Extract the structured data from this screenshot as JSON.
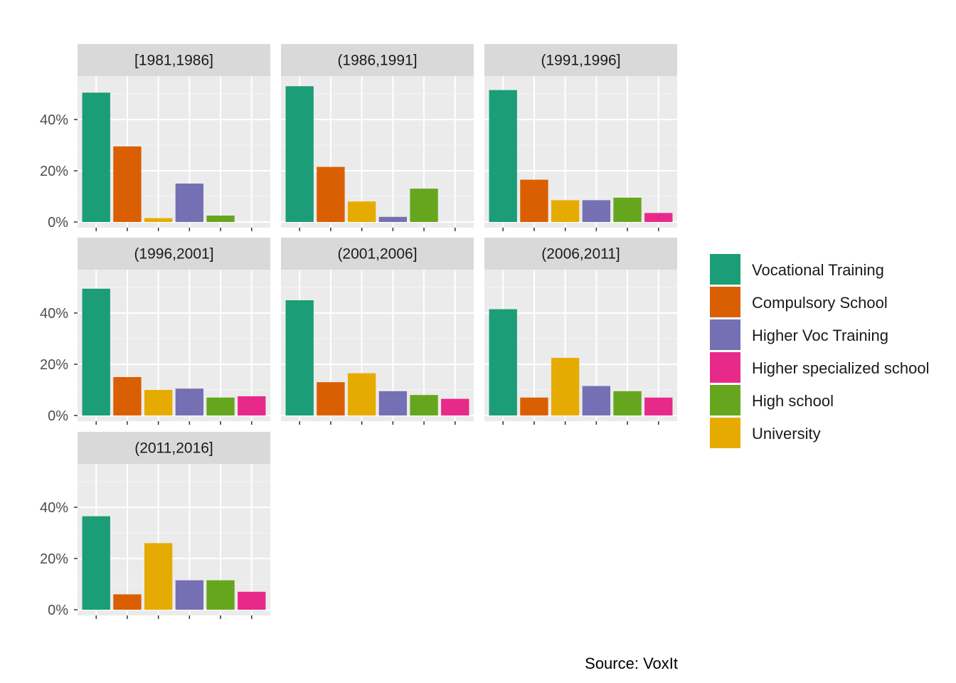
{
  "chart_data": {
    "type": "bar",
    "facet_layout": "wrap-3-columns",
    "categories": [
      "Vocational Training",
      "Compulsory School",
      "University",
      "Higher Voc Training",
      "High school",
      "Higher specialized school"
    ],
    "y_ticks": [
      0,
      20,
      40
    ],
    "y_tick_labels": [
      "0%",
      "20%",
      "40%"
    ],
    "ylim": [
      0,
      55
    ],
    "grid": true,
    "legend_position": "right",
    "colors": {
      "Vocational Training": "#1b9e77",
      "Compulsory School": "#d95f02",
      "University": "#e6ab02",
      "Higher Voc Training": "#7570b3",
      "High school": "#66a61e",
      "Higher specialized school": "#e7298a"
    },
    "facets": [
      {
        "label": "[1981,1986]",
        "values": [
          50.5,
          29.5,
          1.5,
          15,
          2.5,
          0
        ]
      },
      {
        "label": "(1986,1991]",
        "values": [
          53,
          21.5,
          8,
          2,
          13,
          0
        ]
      },
      {
        "label": "(1991,1996]",
        "values": [
          51.5,
          16.5,
          8.5,
          8.5,
          9.5,
          3.5
        ]
      },
      {
        "label": "(1996,2001]",
        "values": [
          49.5,
          15,
          10,
          10.5,
          7,
          7.5
        ]
      },
      {
        "label": "(2001,2006]",
        "values": [
          45,
          13,
          16.5,
          9.5,
          8,
          6.5
        ]
      },
      {
        "label": "(2006,2011]",
        "values": [
          41.5,
          7,
          22.5,
          11.5,
          9.5,
          7
        ]
      },
      {
        "label": "(2011,2016]",
        "values": [
          36.5,
          6,
          26,
          11.5,
          11.5,
          7
        ]
      }
    ]
  },
  "legend": {
    "items": [
      {
        "label": "Vocational Training",
        "color": "#1b9e77"
      },
      {
        "label": "Compulsory School",
        "color": "#d95f02"
      },
      {
        "label": "Higher Voc Training",
        "color": "#7570b3"
      },
      {
        "label": "Higher specialized school",
        "color": "#e7298a"
      },
      {
        "label": "High school",
        "color": "#66a61e"
      },
      {
        "label": "University",
        "color": "#e6ab02"
      }
    ]
  },
  "caption": "Source: VoxIt"
}
